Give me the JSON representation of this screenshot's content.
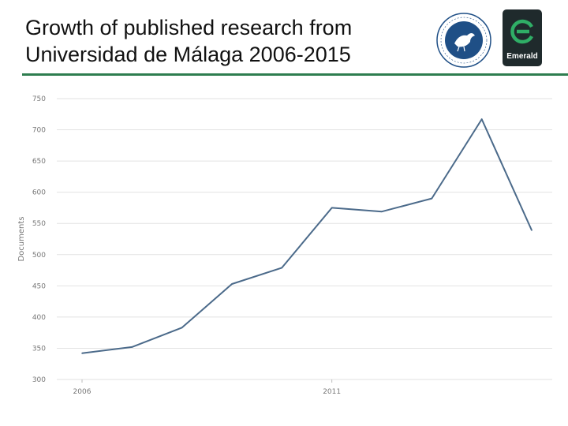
{
  "header": {
    "title_line1": "Growth of published research from",
    "title_line2": "Universidad de Málaga 2006-2015",
    "logo_text": "Emerald"
  },
  "colors": {
    "rule": "#2e7d4f",
    "line": "#4b6a8a",
    "grid": "#e2e2e2",
    "emerald_bg": "#1f2a2c",
    "emerald_mark": "#2fae66",
    "uma_blue": "#1f4f86"
  },
  "chart_data": {
    "type": "line",
    "x": [
      2006,
      2007,
      2008,
      2009,
      2010,
      2011,
      2012,
      2013,
      2014,
      2015
    ],
    "y": [
      342,
      352,
      383,
      453,
      479,
      575,
      569,
      590,
      717,
      539
    ],
    "xlim": [
      2006,
      2015
    ],
    "ylim": [
      300,
      750
    ],
    "yticks": [
      750,
      700,
      650,
      600,
      550,
      500,
      450,
      400,
      350,
      300
    ],
    "xticks": [
      2006,
      2011
    ],
    "ylabel": "Documents",
    "xlabel": "",
    "grid": true
  }
}
